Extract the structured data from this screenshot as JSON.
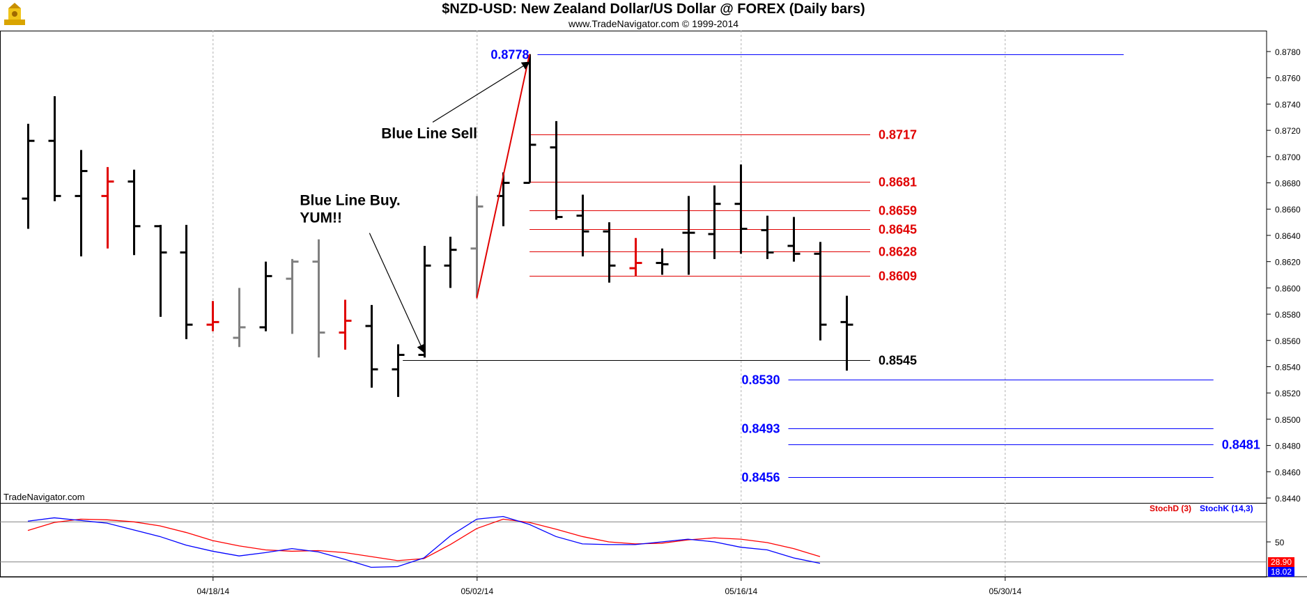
{
  "header": {
    "title": "$NZD-USD:  New Zealand Dollar/US Dollar @ FOREX  (Daily bars)",
    "subtitle": "www.TradeNavigator.com © 1999-2014",
    "watermark": "TradeNavigator.com"
  },
  "colors": {
    "up": "#000000",
    "down_red": "#e00000",
    "neutral_gray": "#808080",
    "blue": "#0000ff",
    "red_level": "#e00000"
  },
  "chart_data": {
    "type": "bar",
    "title": "$NZD-USD:  New Zealand Dollar/US Dollar @ FOREX  (Daily bars)",
    "ylim": [
      0.843,
      0.879
    ],
    "y_ticks": [
      "0.8440",
      "0.8460",
      "0.8480",
      "0.8500",
      "0.8520",
      "0.8540",
      "0.8560",
      "0.8580",
      "0.8600",
      "0.8620",
      "0.8640",
      "0.8660",
      "0.8680",
      "0.8700",
      "0.8720",
      "0.8740",
      "0.8760",
      "0.8780"
    ],
    "x_labels": [
      {
        "label": "04/18/14",
        "bar": 7
      },
      {
        "label": "05/02/14",
        "bar": 17
      },
      {
        "label": "05/16/14",
        "bar": 27
      },
      {
        "label": "05/30/14",
        "bar": 37
      }
    ],
    "ohlc": [
      {
        "o": 0.8668,
        "h": 0.8725,
        "l": 0.8645,
        "c": 0.8712,
        "color": "black"
      },
      {
        "o": 0.8712,
        "h": 0.8746,
        "l": 0.8666,
        "c": 0.867,
        "color": "black"
      },
      {
        "o": 0.867,
        "h": 0.8705,
        "l": 0.8624,
        "c": 0.8689,
        "color": "black"
      },
      {
        "o": 0.867,
        "h": 0.8692,
        "l": 0.863,
        "c": 0.8681,
        "color": "red"
      },
      {
        "o": 0.8681,
        "h": 0.869,
        "l": 0.8625,
        "c": 0.8647,
        "color": "black"
      },
      {
        "o": 0.8647,
        "h": 0.8648,
        "l": 0.8578,
        "c": 0.8627,
        "color": "black"
      },
      {
        "o": 0.8627,
        "h": 0.8648,
        "l": 0.8561,
        "c": 0.8572,
        "color": "black"
      },
      {
        "o": 0.8572,
        "h": 0.859,
        "l": 0.8567,
        "c": 0.8574,
        "color": "red"
      },
      {
        "o": 0.8562,
        "h": 0.86,
        "l": 0.8555,
        "c": 0.857,
        "color": "gray"
      },
      {
        "o": 0.857,
        "h": 0.862,
        "l": 0.8567,
        "c": 0.8609,
        "color": "black"
      },
      {
        "o": 0.8607,
        "h": 0.8622,
        "l": 0.8565,
        "c": 0.862,
        "color": "gray"
      },
      {
        "o": 0.862,
        "h": 0.8637,
        "l": 0.8547,
        "c": 0.8566,
        "color": "gray"
      },
      {
        "o": 0.8566,
        "h": 0.8591,
        "l": 0.8553,
        "c": 0.8575,
        "color": "red"
      },
      {
        "o": 0.8571,
        "h": 0.8587,
        "l": 0.8524,
        "c": 0.8538,
        "color": "black"
      },
      {
        "o": 0.8538,
        "h": 0.8557,
        "l": 0.8517,
        "c": 0.8549,
        "color": "black"
      },
      {
        "o": 0.8549,
        "h": 0.8632,
        "l": 0.8547,
        "c": 0.8617,
        "color": "black"
      },
      {
        "o": 0.8617,
        "h": 0.8639,
        "l": 0.86,
        "c": 0.8629,
        "color": "black"
      },
      {
        "o": 0.863,
        "h": 0.867,
        "l": 0.8593,
        "c": 0.8662,
        "color": "gray"
      },
      {
        "o": 0.867,
        "h": 0.8688,
        "l": 0.8647,
        "c": 0.868,
        "color": "black"
      },
      {
        "o": 0.868,
        "h": 0.8778,
        "l": 0.868,
        "c": 0.8709,
        "color": "black"
      },
      {
        "o": 0.8707,
        "h": 0.8727,
        "l": 0.8652,
        "c": 0.8654,
        "color": "black"
      },
      {
        "o": 0.8655,
        "h": 0.8671,
        "l": 0.8624,
        "c": 0.8643,
        "color": "black"
      },
      {
        "o": 0.8643,
        "h": 0.865,
        "l": 0.8604,
        "c": 0.8617,
        "color": "black"
      },
      {
        "o": 0.8615,
        "h": 0.8638,
        "l": 0.8609,
        "c": 0.8619,
        "color": "red"
      },
      {
        "o": 0.8619,
        "h": 0.863,
        "l": 0.861,
        "c": 0.8618,
        "color": "black"
      },
      {
        "o": 0.8642,
        "h": 0.867,
        "l": 0.861,
        "c": 0.8642,
        "color": "black"
      },
      {
        "o": 0.8641,
        "h": 0.8678,
        "l": 0.8622,
        "c": 0.8664,
        "color": "black"
      },
      {
        "o": 0.8664,
        "h": 0.8694,
        "l": 0.8626,
        "c": 0.8645,
        "color": "black"
      },
      {
        "o": 0.8644,
        "h": 0.8655,
        "l": 0.8622,
        "c": 0.8627,
        "color": "black"
      },
      {
        "o": 0.8632,
        "h": 0.8654,
        "l": 0.862,
        "c": 0.8626,
        "color": "black"
      },
      {
        "o": 0.8626,
        "h": 0.8635,
        "l": 0.856,
        "c": 0.8572,
        "color": "black"
      },
      {
        "o": 0.8574,
        "h": 0.8594,
        "l": 0.8537,
        "c": 0.8572,
        "color": "black"
      }
    ],
    "levels": [
      {
        "label": "0.8778",
        "value": 0.8778,
        "color": "blue",
        "from_bar": 19.3,
        "to_bar": 41.5,
        "label_side": "left"
      },
      {
        "label": "0.8717",
        "value": 0.8717,
        "color": "red",
        "from_bar": 19.0,
        "to_bar": 31.9,
        "label_side": "right"
      },
      {
        "label": "0.8681",
        "value": 0.8681,
        "color": "red",
        "from_bar": 19.0,
        "to_bar": 31.9,
        "label_side": "right"
      },
      {
        "label": "0.8659",
        "value": 0.8659,
        "color": "red",
        "from_bar": 19.0,
        "to_bar": 31.9,
        "label_side": "right"
      },
      {
        "label": "0.8645",
        "value": 0.8645,
        "color": "red",
        "from_bar": 19.0,
        "to_bar": 31.9,
        "label_side": "right"
      },
      {
        "label": "0.8628",
        "value": 0.8628,
        "color": "red",
        "from_bar": 19.0,
        "to_bar": 31.9,
        "label_side": "right"
      },
      {
        "label": "0.8609",
        "value": 0.8609,
        "color": "red",
        "from_bar": 19.0,
        "to_bar": 31.9,
        "label_side": "right"
      },
      {
        "label": "0.8545",
        "value": 0.8545,
        "color": "black",
        "from_bar": 14.2,
        "to_bar": 31.9,
        "label_side": "right"
      },
      {
        "label": "0.8530",
        "value": 0.853,
        "color": "blue",
        "from_bar": 28.8,
        "to_bar": 44.9,
        "label_side": "left"
      },
      {
        "label": "0.8493",
        "value": 0.8493,
        "color": "blue",
        "from_bar": 28.8,
        "to_bar": 44.9,
        "label_side": "left"
      },
      {
        "label": "0.8481",
        "value": 0.8481,
        "color": "blue",
        "from_bar": 28.8,
        "to_bar": 44.9,
        "label_side": "right"
      },
      {
        "label": "0.8456",
        "value": 0.8456,
        "color": "blue",
        "from_bar": 28.8,
        "to_bar": 44.9,
        "label_side": "left"
      }
    ],
    "blue_line": {
      "from": {
        "bar": 17.0,
        "value": 0.8592
      },
      "to": {
        "bar": 19.0,
        "value": 0.8778
      }
    },
    "annotations": [
      {
        "text_lines": [
          "Blue Line Sell"
        ],
        "bar": 15.2,
        "value": 0.8714,
        "arrow_to": {
          "bar": 19.0,
          "value": 0.8772
        }
      },
      {
        "text_lines": [
          "Blue Line Buy.",
          "YUM!!"
        ],
        "bar": 10.3,
        "value": 0.8663,
        "arrow_to": {
          "bar": 15.0,
          "value": 0.8551
        }
      }
    ],
    "stochastic": {
      "ylim": [
        0,
        100
      ],
      "level_lines": [
        20,
        80
      ],
      "tick_label": "50",
      "stochd_label": "StochD (3)",
      "stochk_label": "StochK (14,3)",
      "stochd_value": "28.90",
      "stochk_value": "18.02",
      "stochd": [
        67,
        79,
        84,
        83,
        80,
        74,
        64,
        52,
        44,
        38,
        36,
        37,
        34,
        28,
        22,
        25,
        46,
        70,
        84,
        79,
        69,
        58,
        50,
        47,
        48,
        53,
        56,
        54,
        49,
        40,
        28
      ],
      "stochk": [
        81,
        86,
        82,
        78,
        68,
        58,
        45,
        36,
        29,
        34,
        40,
        35,
        24,
        12,
        13,
        26,
        59,
        84,
        88,
        76,
        58,
        47,
        46,
        46,
        50,
        54,
        50,
        42,
        38,
        26,
        18
      ]
    }
  }
}
